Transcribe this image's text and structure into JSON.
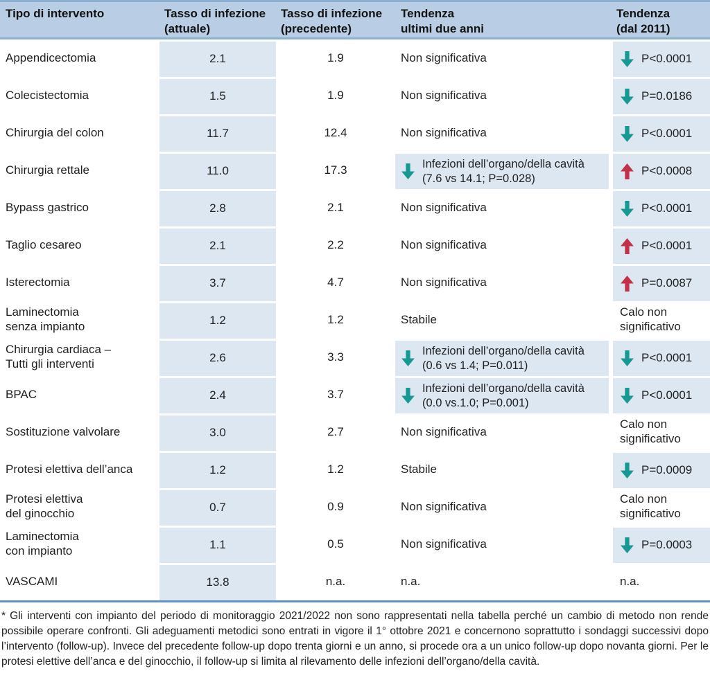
{
  "chart_data": {
    "type": "table",
    "columns": [
      "Tipo di intervento",
      "Tasso di infezione (attuale)",
      "Tasso di infezione (precedente)",
      "Tendenza ultimi due anni",
      "Tendenza (dal 2011)"
    ],
    "rows": [
      {
        "intervento": "Appendicectomia",
        "tasso_attuale": "2.1",
        "tasso_precedente": "1.9",
        "tendenza_2anni": {
          "arrow": null,
          "text": "Non significativa",
          "box": false
        },
        "tendenza_2011": {
          "arrow": "down",
          "text": "P<0.0001",
          "box": true
        }
      },
      {
        "intervento": "Colecistectomia",
        "tasso_attuale": "1.5",
        "tasso_precedente": "1.9",
        "tendenza_2anni": {
          "arrow": null,
          "text": "Non significativa",
          "box": false
        },
        "tendenza_2011": {
          "arrow": "down",
          "text": "P=0.0186",
          "box": true
        }
      },
      {
        "intervento": "Chirurgia del colon",
        "tasso_attuale": "11.7",
        "tasso_precedente": "12.4",
        "tendenza_2anni": {
          "arrow": null,
          "text": "Non significativa",
          "box": false
        },
        "tendenza_2011": {
          "arrow": "down",
          "text": "P<0.0001",
          "box": true
        }
      },
      {
        "intervento": "Chirurgia rettale",
        "tasso_attuale": "11.0",
        "tasso_precedente": "17.3",
        "tendenza_2anni": {
          "arrow": "down",
          "text": "Infezioni dell’organo/della cavità\n(7.6 vs 14.1; P=0.028)",
          "box": true
        },
        "tendenza_2011": {
          "arrow": "up",
          "text": "P<0.0008",
          "box": true
        }
      },
      {
        "intervento": "Bypass gastrico",
        "tasso_attuale": "2.8",
        "tasso_precedente": "2.1",
        "tendenza_2anni": {
          "arrow": null,
          "text": "Non significativa",
          "box": false
        },
        "tendenza_2011": {
          "arrow": "down",
          "text": "P<0.0001",
          "box": true
        }
      },
      {
        "intervento": "Taglio cesareo",
        "tasso_attuale": "2.1",
        "tasso_precedente": "2.2",
        "tendenza_2anni": {
          "arrow": null,
          "text": "Non significativa",
          "box": false
        },
        "tendenza_2011": {
          "arrow": "up",
          "text": "P<0.0001",
          "box": true
        }
      },
      {
        "intervento": "Isterectomia",
        "tasso_attuale": "3.7",
        "tasso_precedente": "4.7",
        "tendenza_2anni": {
          "arrow": null,
          "text": "Non significativa",
          "box": false
        },
        "tendenza_2011": {
          "arrow": "up",
          "text": "P=0.0087",
          "box": true
        }
      },
      {
        "intervento": "Laminectomia\nsenza impianto",
        "tasso_attuale": "1.2",
        "tasso_precedente": "1.2",
        "tendenza_2anni": {
          "arrow": null,
          "text": "Stabile",
          "box": false
        },
        "tendenza_2011": {
          "arrow": null,
          "text": "Calo non\nsignificativo",
          "box": false
        }
      },
      {
        "intervento": "Chirurgia cardiaca –\nTutti gli interventi",
        "tasso_attuale": "2.6",
        "tasso_precedente": "3.3",
        "tendenza_2anni": {
          "arrow": "down",
          "text": "Infezioni dell’organo/della cavità\n(0.6 vs 1.4; P=0.011)",
          "box": true
        },
        "tendenza_2011": {
          "arrow": "down",
          "text": "P<0.0001",
          "box": true
        }
      },
      {
        "intervento": "BPAC",
        "tasso_attuale": "2.4",
        "tasso_precedente": "3.7",
        "tendenza_2anni": {
          "arrow": "down",
          "text": "Infezioni dell’organo/della cavità\n(0.0 vs.1.0; P=0.001)",
          "box": true
        },
        "tendenza_2011": {
          "arrow": "down",
          "text": "P<0.0001",
          "box": true
        }
      },
      {
        "intervento": "Sostituzione valvolare",
        "tasso_attuale": "3.0",
        "tasso_precedente": "2.7",
        "tendenza_2anni": {
          "arrow": null,
          "text": "Non significativa",
          "box": false
        },
        "tendenza_2011": {
          "arrow": null,
          "text": "Calo non\nsignificativo",
          "box": false
        }
      },
      {
        "intervento": "Protesi elettiva dell’anca",
        "tasso_attuale": "1.2",
        "tasso_precedente": "1.2",
        "tendenza_2anni": {
          "arrow": null,
          "text": "Stabile",
          "box": false
        },
        "tendenza_2011": {
          "arrow": "down",
          "text": "P=0.0009",
          "box": true
        }
      },
      {
        "intervento": "Protesi elettiva\ndel ginocchio",
        "tasso_attuale": "0.7",
        "tasso_precedente": "0.9",
        "tendenza_2anni": {
          "arrow": null,
          "text": "Non significativa",
          "box": false
        },
        "tendenza_2011": {
          "arrow": null,
          "text": "Calo non\nsignificativo",
          "box": false
        }
      },
      {
        "intervento": "Laminectomia\ncon impianto",
        "tasso_attuale": "1.1",
        "tasso_precedente": "0.5",
        "tendenza_2anni": {
          "arrow": null,
          "text": "Non significativa",
          "box": false
        },
        "tendenza_2011": {
          "arrow": "down",
          "text": "P=0.0003",
          "box": true
        }
      },
      {
        "intervento": "VASCAMI",
        "tasso_attuale": "13.8",
        "tasso_precedente": "n.a.",
        "tendenza_2anni": {
          "arrow": null,
          "text": "n.a.",
          "box": false
        },
        "tendenza_2011": {
          "arrow": null,
          "text": "n.a.",
          "box": false
        }
      }
    ],
    "footnote": "* Gli interventi con impianto del periodo di monitoraggio 2021/2022 non sono rappresentati nella tabella perché un cambio di metodo non rende possibile operare confronti. Gli adeguamenti metodici sono entrati in vigore il 1° ottobre 2021 e concernono soprattutto i sondaggi successivi dopo l’intervento (follow-up). Invece del precedente follow-up dopo trenta giorni e un anno, si procede ora a un unico follow-up dopo novanta giorni. Per le protesi elettive dell’anca e del ginocchio, il follow-up si limita al rilevamento delle infezioni dell’organo/della cavità.",
    "layout_hints": {
      "shaded_columns": [
        "Tasso di infezione (attuale)",
        "Tendenza (dal 2011)"
      ]
    }
  },
  "header_lines": [
    [
      "Tipo di intervento"
    ],
    [
      "Tasso di infezione",
      "(attuale)"
    ],
    [
      "Tasso di infezione",
      "(precedente)"
    ],
    [
      "Tendenza",
      "ultimi due anni"
    ],
    [
      "Tendenza",
      "(dal 2011)"
    ]
  ],
  "icons": {
    "trend-down-icon": "↓",
    "trend-up-icon": "↑"
  },
  "colors": {
    "teal": "#169992",
    "red": "#c23049",
    "header_bg": "#b9cee4",
    "header_line": "#8cb0d2",
    "cell_bg": "#dde7f2",
    "table_line": "#5e91c4"
  }
}
